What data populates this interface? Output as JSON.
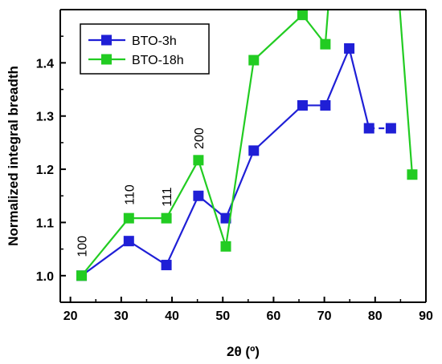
{
  "chart_data": {
    "type": "line",
    "title": "",
    "xlabel": "2θ (º)",
    "ylabel": "Normalized integral breadth",
    "xlim": [
      18,
      90
    ],
    "ylim": [
      0.95,
      1.5
    ],
    "xticks": [
      20,
      30,
      40,
      50,
      60,
      70,
      80,
      90
    ],
    "yticks": [
      1.0,
      1.1,
      1.2,
      1.3,
      1.4
    ],
    "ytick_labels": [
      "1.0",
      "1.1",
      "1.2",
      "1.3",
      "1.4"
    ],
    "grid": false,
    "legend_position": "top-left",
    "series": [
      {
        "name": "BTO-3h",
        "color": "#1f1fd6",
        "marker": "square",
        "x": [
          22.2,
          31.5,
          38.9,
          45.2,
          50.6,
          56.1,
          65.7,
          70.2,
          74.9,
          78.8,
          83.1
        ],
        "y": [
          1.0,
          1.065,
          1.02,
          1.15,
          1.108,
          1.235,
          1.32,
          1.32,
          1.427,
          1.277,
          1.277
        ],
        "breaks_after_index": [
          9
        ]
      },
      {
        "name": "BTO-18h",
        "color": "#22cc22",
        "marker": "square",
        "x": [
          22.2,
          31.5,
          38.9,
          45.2,
          50.6,
          56.1,
          65.7,
          70.2,
          87.3
        ],
        "y": [
          1.0,
          1.108,
          1.108,
          1.217,
          1.055,
          1.405,
          1.49,
          1.435,
          1.19
        ],
        "offscale": {
          "after_index": 7,
          "exit_x": 71.1,
          "reenter_x": 84.5
        }
      }
    ],
    "annotations": [
      {
        "text": "100",
        "x": 22.2,
        "y": 1.055
      },
      {
        "text": "110",
        "x": 31.5,
        "y": 1.152
      },
      {
        "text": "111",
        "x": 38.9,
        "y": 1.148
      },
      {
        "text": "200",
        "x": 45.2,
        "y": 1.258
      }
    ]
  }
}
